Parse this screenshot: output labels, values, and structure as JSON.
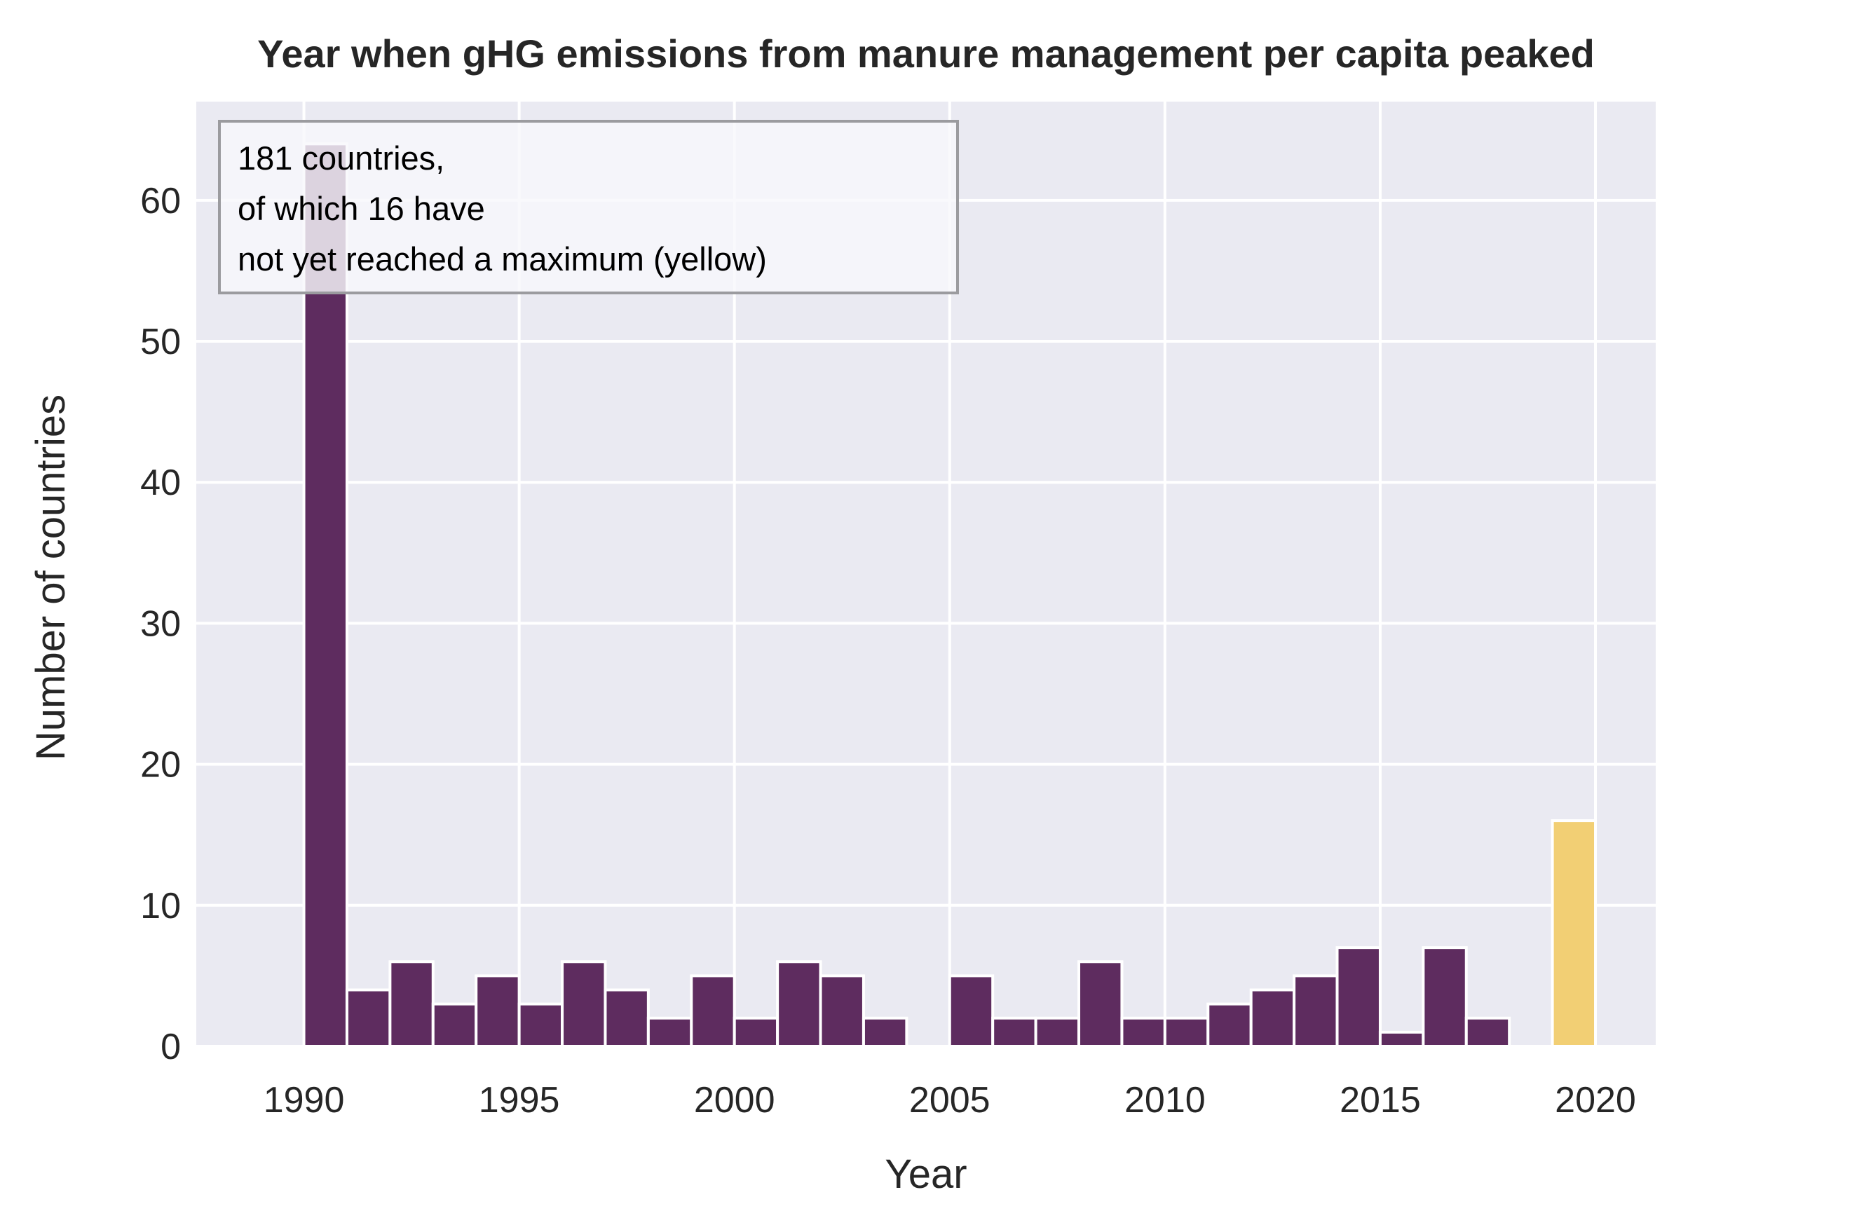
{
  "chart_data": {
    "type": "bar",
    "title": "Year when gHG emissions from manure management per capita peaked",
    "xlabel": "Year",
    "ylabel": "Number of countries",
    "xlim": [
      1987.5,
      2021.4
    ],
    "ylim": [
      0,
      67
    ],
    "xticks": [
      1990,
      1995,
      2000,
      2005,
      2010,
      2015,
      2020
    ],
    "yticks": [
      0,
      10,
      20,
      30,
      40,
      50,
      60
    ],
    "grid": true,
    "bin_width": 1,
    "annotation": {
      "lines": [
        "181 countries,",
        "of which 16 have",
        "not yet reached a maximum (yellow)"
      ],
      "placement": "top-left"
    },
    "series": [
      {
        "color": "#5e2c5f",
        "bins": [
          {
            "start": 1990,
            "value": 64
          },
          {
            "start": 1991,
            "value": 4
          },
          {
            "start": 1992,
            "value": 6
          },
          {
            "start": 1993,
            "value": 3
          },
          {
            "start": 1994,
            "value": 5
          },
          {
            "start": 1995,
            "value": 3
          },
          {
            "start": 1996,
            "value": 6
          },
          {
            "start": 1997,
            "value": 4
          },
          {
            "start": 1998,
            "value": 2
          },
          {
            "start": 1999,
            "value": 5
          },
          {
            "start": 2000,
            "value": 2
          },
          {
            "start": 2001,
            "value": 6
          },
          {
            "start": 2002,
            "value": 5
          },
          {
            "start": 2003,
            "value": 2
          },
          {
            "start": 2005,
            "value": 5
          },
          {
            "start": 2006,
            "value": 2
          },
          {
            "start": 2007,
            "value": 2
          },
          {
            "start": 2008,
            "value": 6
          },
          {
            "start": 2009,
            "value": 2
          },
          {
            "start": 2010,
            "value": 2
          },
          {
            "start": 2011,
            "value": 3
          },
          {
            "start": 2012,
            "value": 4
          },
          {
            "start": 2013,
            "value": 5
          },
          {
            "start": 2014,
            "value": 7
          },
          {
            "start": 2015,
            "value": 1
          },
          {
            "start": 2016,
            "value": 7
          },
          {
            "start": 2017,
            "value": 2
          }
        ]
      },
      {
        "color": "#f2cf74",
        "bins": [
          {
            "start": 2019,
            "value": 16
          }
        ]
      }
    ],
    "colors": {
      "plot_background": "#eaeaf2",
      "grid": "#ffffff",
      "bar_edge": "#ffffff",
      "annotation_box_fill": "#f8f8fb",
      "annotation_box_edge": "#9b9b9f"
    }
  }
}
